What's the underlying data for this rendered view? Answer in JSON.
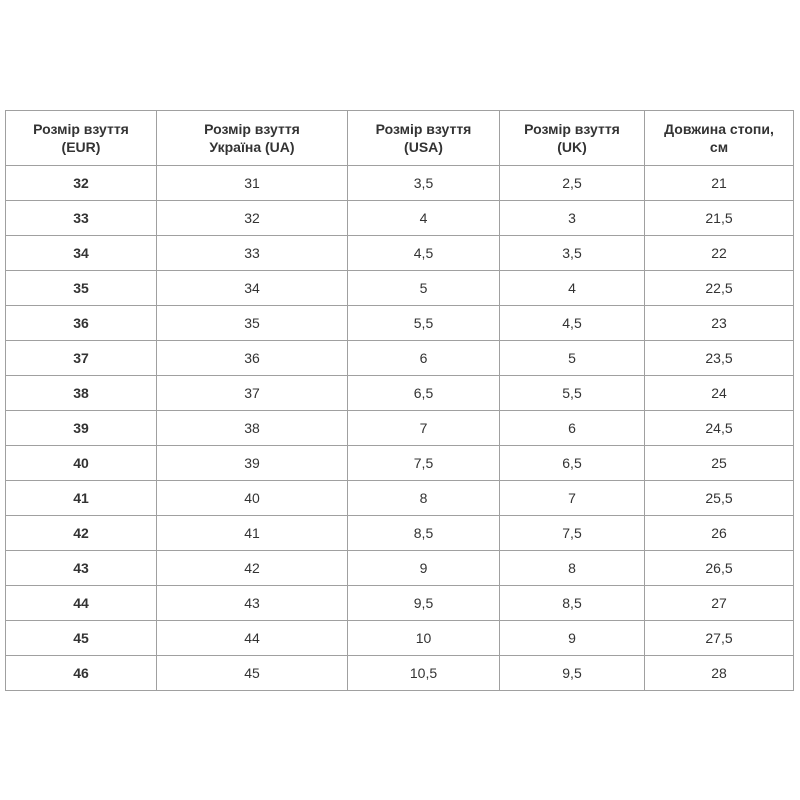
{
  "table": {
    "headers": [
      [
        "Розмір взуття",
        "(EUR)"
      ],
      [
        "Розмір взуття",
        "Україна (UA)"
      ],
      [
        "Розмір взуття",
        "(USA)"
      ],
      [
        "Розмір взуття",
        "(UK)"
      ],
      [
        "Довжина стопи,",
        "см"
      ]
    ],
    "rows": [
      [
        "32",
        "31",
        "3,5",
        "2,5",
        "21"
      ],
      [
        "33",
        "32",
        "4",
        "3",
        "21,5"
      ],
      [
        "34",
        "33",
        "4,5",
        "3,5",
        "22"
      ],
      [
        "35",
        "34",
        "5",
        "4",
        "22,5"
      ],
      [
        "36",
        "35",
        "5,5",
        "4,5",
        "23"
      ],
      [
        "37",
        "36",
        "6",
        "5",
        "23,5"
      ],
      [
        "38",
        "37",
        "6,5",
        "5,5",
        "24"
      ],
      [
        "39",
        "38",
        "7",
        "6",
        "24,5"
      ],
      [
        "40",
        "39",
        "7,5",
        "6,5",
        "25"
      ],
      [
        "41",
        "40",
        "8",
        "7",
        "25,5"
      ],
      [
        "42",
        "41",
        "8,5",
        "7,5",
        "26"
      ],
      [
        "43",
        "42",
        "9",
        "8",
        "26,5"
      ],
      [
        "44",
        "43",
        "9,5",
        "8,5",
        "27"
      ],
      [
        "45",
        "44",
        "10",
        "9",
        "27,5"
      ],
      [
        "46",
        "45",
        "10,5",
        "9,5",
        "28"
      ]
    ]
  }
}
